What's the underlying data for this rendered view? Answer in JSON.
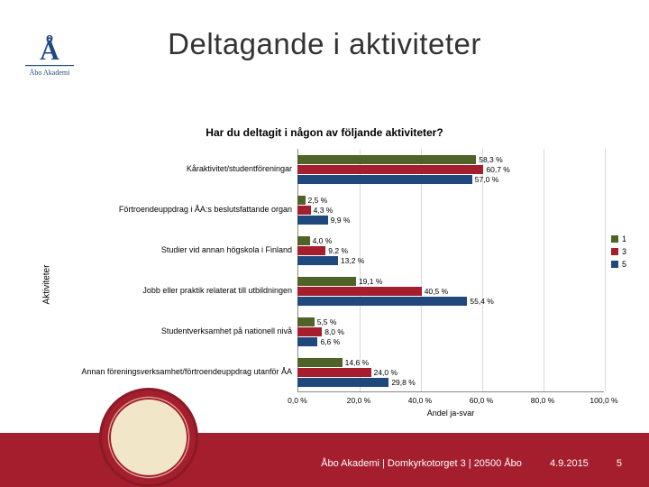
{
  "title": "Deltagande i aktiviteter",
  "subtitle": "Har du deltagit i någon av följande aktiviteter?",
  "y_axis_label": "Aktiviteter",
  "x_axis_label": "Andel ja-svar",
  "xlim": [
    0,
    100
  ],
  "xtick_step": 20,
  "xticks": [
    "0,0 %",
    "20,0 %",
    "40,0 %",
    "60,0 %",
    "80,0 %",
    "100,0 %"
  ],
  "colors": {
    "series1": "#4f6228",
    "series3": "#a51e2d",
    "series5": "#1f497d",
    "grid": "#d9d9d9",
    "axis": "#888888",
    "footer": "#a51e2d",
    "text": "#000000",
    "background": "#ffffff"
  },
  "series_labels": {
    "s1": "1",
    "s3": "3",
    "s5": "5"
  },
  "categories": [
    {
      "label": "Kåraktivitet/studentföreningar",
      "v1": 58.3,
      "v3": 60.7,
      "v5": 57.0,
      "l1": "58,3 %",
      "l3": "60,7 %",
      "l5": "57,0 %"
    },
    {
      "label": "Förtroendeuppdrag i ÅA:s beslutsfattande organ",
      "v1": 2.5,
      "v3": 4.3,
      "v5": 9.9,
      "l1": "2,5 %",
      "l3": "4,3 %",
      "l5": "9,9 %"
    },
    {
      "label": "Studier vid annan högskola i Finland",
      "v1": 4.0,
      "v3": 9.2,
      "v5": 13.2,
      "l1": "4,0 %",
      "l3": "9,2 %",
      "l5": "13,2 %"
    },
    {
      "label": "Jobb eller praktik relaterat till utbildningen",
      "v1": 19.1,
      "v3": 40.5,
      "v5": 55.4,
      "l1": "19,1 %",
      "l3": "40,5 %",
      "l5": "55,4 %"
    },
    {
      "label": "Studentverksamhet på nationell nivå",
      "v1": 5.5,
      "v3": 8.0,
      "v5": 6.6,
      "l1": "5,5 %",
      "l3": "8,0 %",
      "l5": "6,6 %"
    },
    {
      "label": "Annan föreningsverksamhet/förtroendeuppdrag utanför ÅA",
      "v1": 14.6,
      "v3": 24.0,
      "v5": 29.8,
      "l1": "14,6 %",
      "l3": "24,0 %",
      "l5": "29,8 %"
    }
  ],
  "footer": {
    "org": "Åbo Akademi | Domkyrkotorget 3 | 20500 Åbo",
    "date": "4.9.2015",
    "page": "5"
  }
}
